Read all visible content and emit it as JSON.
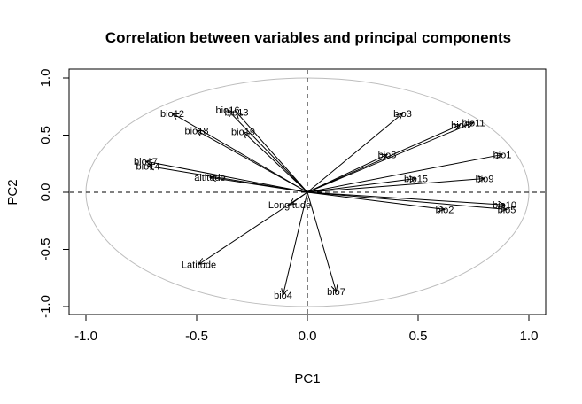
{
  "chart_data": {
    "type": "scatter",
    "title": "Correlation between variables and principal components",
    "xlabel": "PC1",
    "ylabel": "PC2",
    "xlim": [
      -1.0,
      1.0
    ],
    "ylim": [
      -1.0,
      1.0
    ],
    "xticks": [
      -1.0,
      -0.5,
      0.0,
      0.5,
      1.0
    ],
    "yticks": [
      -1.0,
      -0.5,
      0.0,
      0.5,
      1.0
    ],
    "xtick_labels": [
      "-1.0",
      "-0.5",
      "0.0",
      "0.5",
      "1.0"
    ],
    "ytick_labels": [
      "-1.0",
      "-0.5",
      "0.0",
      "0.5",
      "1.0"
    ],
    "grid": false,
    "unit_circle": true,
    "circle_color": "#bdbdbd",
    "variables": [
      {
        "name": "bio12",
        "x": -0.61,
        "y": 0.69
      },
      {
        "name": "bio16",
        "x": -0.36,
        "y": 0.72
      },
      {
        "name": "bio13",
        "x": -0.32,
        "y": 0.7
      },
      {
        "name": "bio18",
        "x": -0.5,
        "y": 0.54
      },
      {
        "name": "bio19",
        "x": -0.29,
        "y": 0.53
      },
      {
        "name": "bio17",
        "x": -0.73,
        "y": 0.27
      },
      {
        "name": "bio14",
        "x": -0.72,
        "y": 0.23
      },
      {
        "name": "altitude",
        "x": -0.44,
        "y": 0.13
      },
      {
        "name": "Longitude",
        "x": -0.08,
        "y": -0.11
      },
      {
        "name": "Latitude",
        "x": -0.49,
        "y": -0.63
      },
      {
        "name": "bio4",
        "x": -0.11,
        "y": -0.9
      },
      {
        "name": "bio7",
        "x": 0.13,
        "y": -0.87
      },
      {
        "name": "bio3",
        "x": 0.43,
        "y": 0.69
      },
      {
        "name": "bio6",
        "x": 0.69,
        "y": 0.59
      },
      {
        "name": "bio11",
        "x": 0.75,
        "y": 0.61
      },
      {
        "name": "bio8",
        "x": 0.36,
        "y": 0.33
      },
      {
        "name": "bio1",
        "x": 0.88,
        "y": 0.33
      },
      {
        "name": "bio15",
        "x": 0.49,
        "y": 0.12
      },
      {
        "name": "bio9",
        "x": 0.8,
        "y": 0.12
      },
      {
        "name": "bio2",
        "x": 0.62,
        "y": -0.15
      },
      {
        "name": "bio10",
        "x": 0.89,
        "y": -0.11
      },
      {
        "name": "bio5",
        "x": 0.9,
        "y": -0.15
      }
    ]
  }
}
